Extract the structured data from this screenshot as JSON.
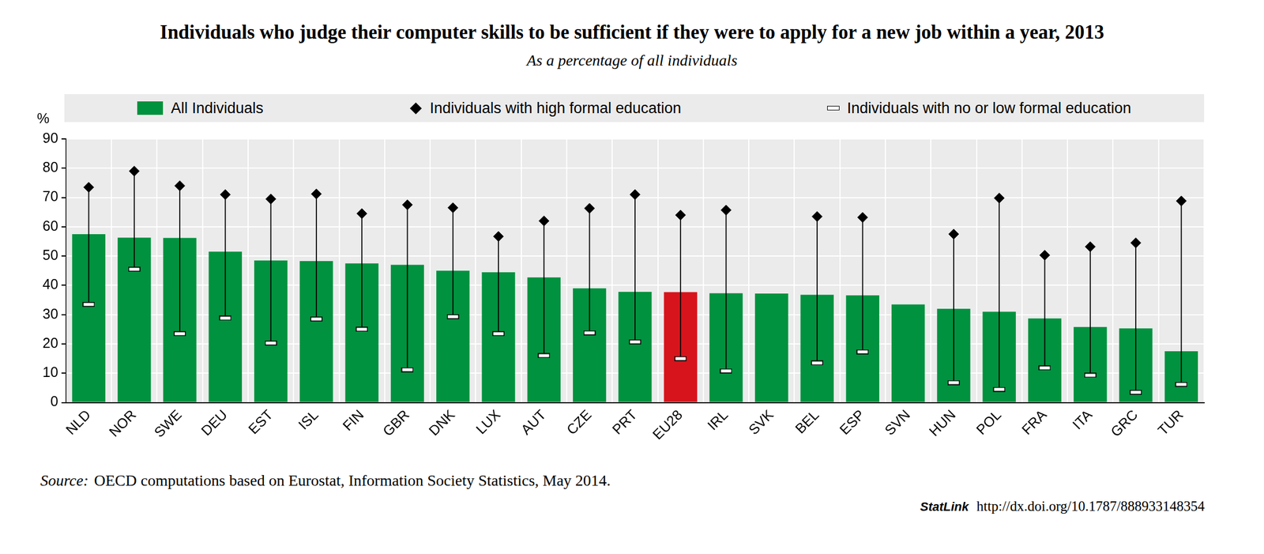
{
  "chart_data": {
    "type": "bar",
    "title": "Individuals who judge their computer skills to be sufficient if they were to apply for a new job within a year, 2013",
    "subtitle": "As a percentage of all individuals",
    "ylabel": "%",
    "categories": [
      "NLD",
      "NOR",
      "SWE",
      "DEU",
      "EST",
      "ISL",
      "FIN",
      "GBR",
      "DNK",
      "LUX",
      "AUT",
      "CZE",
      "PRT",
      "EU28",
      "IRL",
      "SVK",
      "BEL",
      "ESP",
      "SVN",
      "HUN",
      "POL",
      "FRA",
      "ITA",
      "GRC",
      "TUR"
    ],
    "series": [
      {
        "name": "All Individuals",
        "type": "bar",
        "marker": "square",
        "color": "#00923f",
        "colors": [
          "#00923f",
          "#00923f",
          "#00923f",
          "#00923f",
          "#00923f",
          "#00923f",
          "#00923f",
          "#00923f",
          "#00923f",
          "#00923f",
          "#00923f",
          "#00923f",
          "#00923f",
          "#d7141c",
          "#00923f",
          "#00923f",
          "#00923f",
          "#00923f",
          "#00923f",
          "#00923f",
          "#00923f",
          "#00923f",
          "#00923f",
          "#00923f",
          "#00923f"
        ],
        "values": [
          57.5,
          56.3,
          56.2,
          51.5,
          48.5,
          48.3,
          47.5,
          47,
          45,
          44.5,
          42.7,
          39,
          37.8,
          37.7,
          37.3,
          37.2,
          36.8,
          36.6,
          33.5,
          32,
          31,
          28.7,
          25.8,
          25.3,
          17.5
        ]
      },
      {
        "name": "Individuals with high formal education",
        "type": "scatter",
        "marker": "diamond",
        "color": "#000000",
        "values": [
          73.5,
          79,
          74,
          71,
          69.5,
          71.2,
          64.5,
          67.5,
          66.5,
          56.7,
          62,
          66.3,
          71,
          64,
          65.7,
          null,
          63.5,
          63.2,
          null,
          57.5,
          69.8,
          50.3,
          53.2,
          54.5,
          68.8
        ]
      },
      {
        "name": "Individuals with no or low formal education",
        "type": "scatter",
        "marker": "dash",
        "color": "#ffffff",
        "values": [
          33.5,
          45.5,
          23.5,
          28.8,
          20.3,
          28.5,
          25,
          11.2,
          29.3,
          23.5,
          16,
          23.8,
          20.7,
          15,
          10.8,
          null,
          13.5,
          17.3,
          null,
          6.8,
          4.5,
          11.8,
          9.3,
          3.5,
          6.2
        ]
      }
    ],
    "ylim": [
      0,
      90
    ],
    "yticks": [
      0,
      10,
      20,
      30,
      40,
      50,
      60,
      70,
      80,
      90
    ],
    "grid": true,
    "legend": "top",
    "source_label": "Source:",
    "source": "OECD computations based on Eurostat, Information Society Statistics, May 2014.",
    "statlink_label": "StatLink",
    "statlink": "http://dx.doi.org/10.1787/888933148354"
  }
}
